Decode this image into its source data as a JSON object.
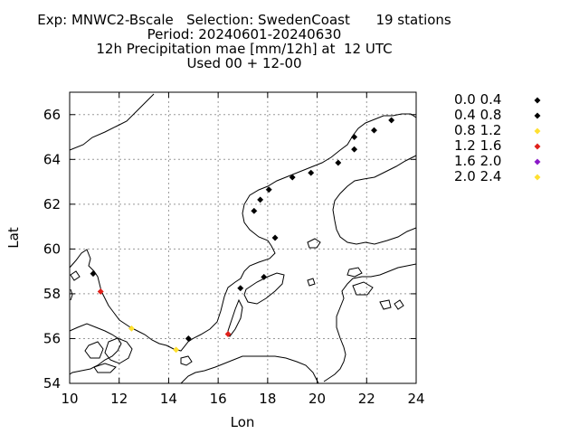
{
  "title": {
    "line1": "Exp: MNWC2-Bscale   Selection: SwedenCoast      19 stations",
    "line2": "Period: 20240601-20240630",
    "line3": "12h Precipitation mae [mm/12h] at  12 UTC",
    "line4": "Used 00 + 12-00"
  },
  "chart_data": {
    "type": "scatter",
    "xlabel": "Lon",
    "ylabel": "Lat",
    "xlim": [
      10,
      24
    ],
    "ylim": [
      54,
      67
    ],
    "xticks": [
      10,
      12,
      14,
      16,
      18,
      20,
      22,
      24
    ],
    "yticks": [
      54,
      56,
      58,
      60,
      62,
      64,
      66
    ],
    "grid": true,
    "legend_position": "right",
    "classes": [
      {
        "label": "0.0 0.4",
        "color": "#000000"
      },
      {
        "label": "0.4 0.8",
        "color": "#000000"
      },
      {
        "label": "0.8 1.2",
        "color": "#ffe030"
      },
      {
        "label": "1.2 1.6",
        "color": "#e0201a"
      },
      {
        "label": "1.6 2.0",
        "color": "#8a18c8"
      },
      {
        "label": "2.0 2.4",
        "color": "#ffe030"
      }
    ],
    "stations": [
      {
        "lon": 10.95,
        "lat": 58.9,
        "class": 0
      },
      {
        "lon": 11.25,
        "lat": 58.1,
        "class": 3
      },
      {
        "lon": 12.5,
        "lat": 56.45,
        "class": 2
      },
      {
        "lon": 14.3,
        "lat": 55.5,
        "class": 2
      },
      {
        "lon": 14.8,
        "lat": 56.0,
        "class": 0
      },
      {
        "lon": 16.4,
        "lat": 56.2,
        "class": 3
      },
      {
        "lon": 16.9,
        "lat": 58.25,
        "class": 0
      },
      {
        "lon": 17.85,
        "lat": 58.75,
        "class": 0
      },
      {
        "lon": 18.3,
        "lat": 60.5,
        "class": 0
      },
      {
        "lon": 17.45,
        "lat": 61.7,
        "class": 0
      },
      {
        "lon": 17.7,
        "lat": 62.2,
        "class": 0
      },
      {
        "lon": 18.05,
        "lat": 62.65,
        "class": 0
      },
      {
        "lon": 19.0,
        "lat": 63.2,
        "class": 0
      },
      {
        "lon": 19.75,
        "lat": 63.4,
        "class": 0
      },
      {
        "lon": 20.85,
        "lat": 63.85,
        "class": 1
      },
      {
        "lon": 21.5,
        "lat": 64.45,
        "class": 0
      },
      {
        "lon": 21.5,
        "lat": 65.0,
        "class": 0
      },
      {
        "lon": 22.3,
        "lat": 65.3,
        "class": 0
      },
      {
        "lon": 23.0,
        "lat": 65.75,
        "class": 0
      }
    ]
  }
}
